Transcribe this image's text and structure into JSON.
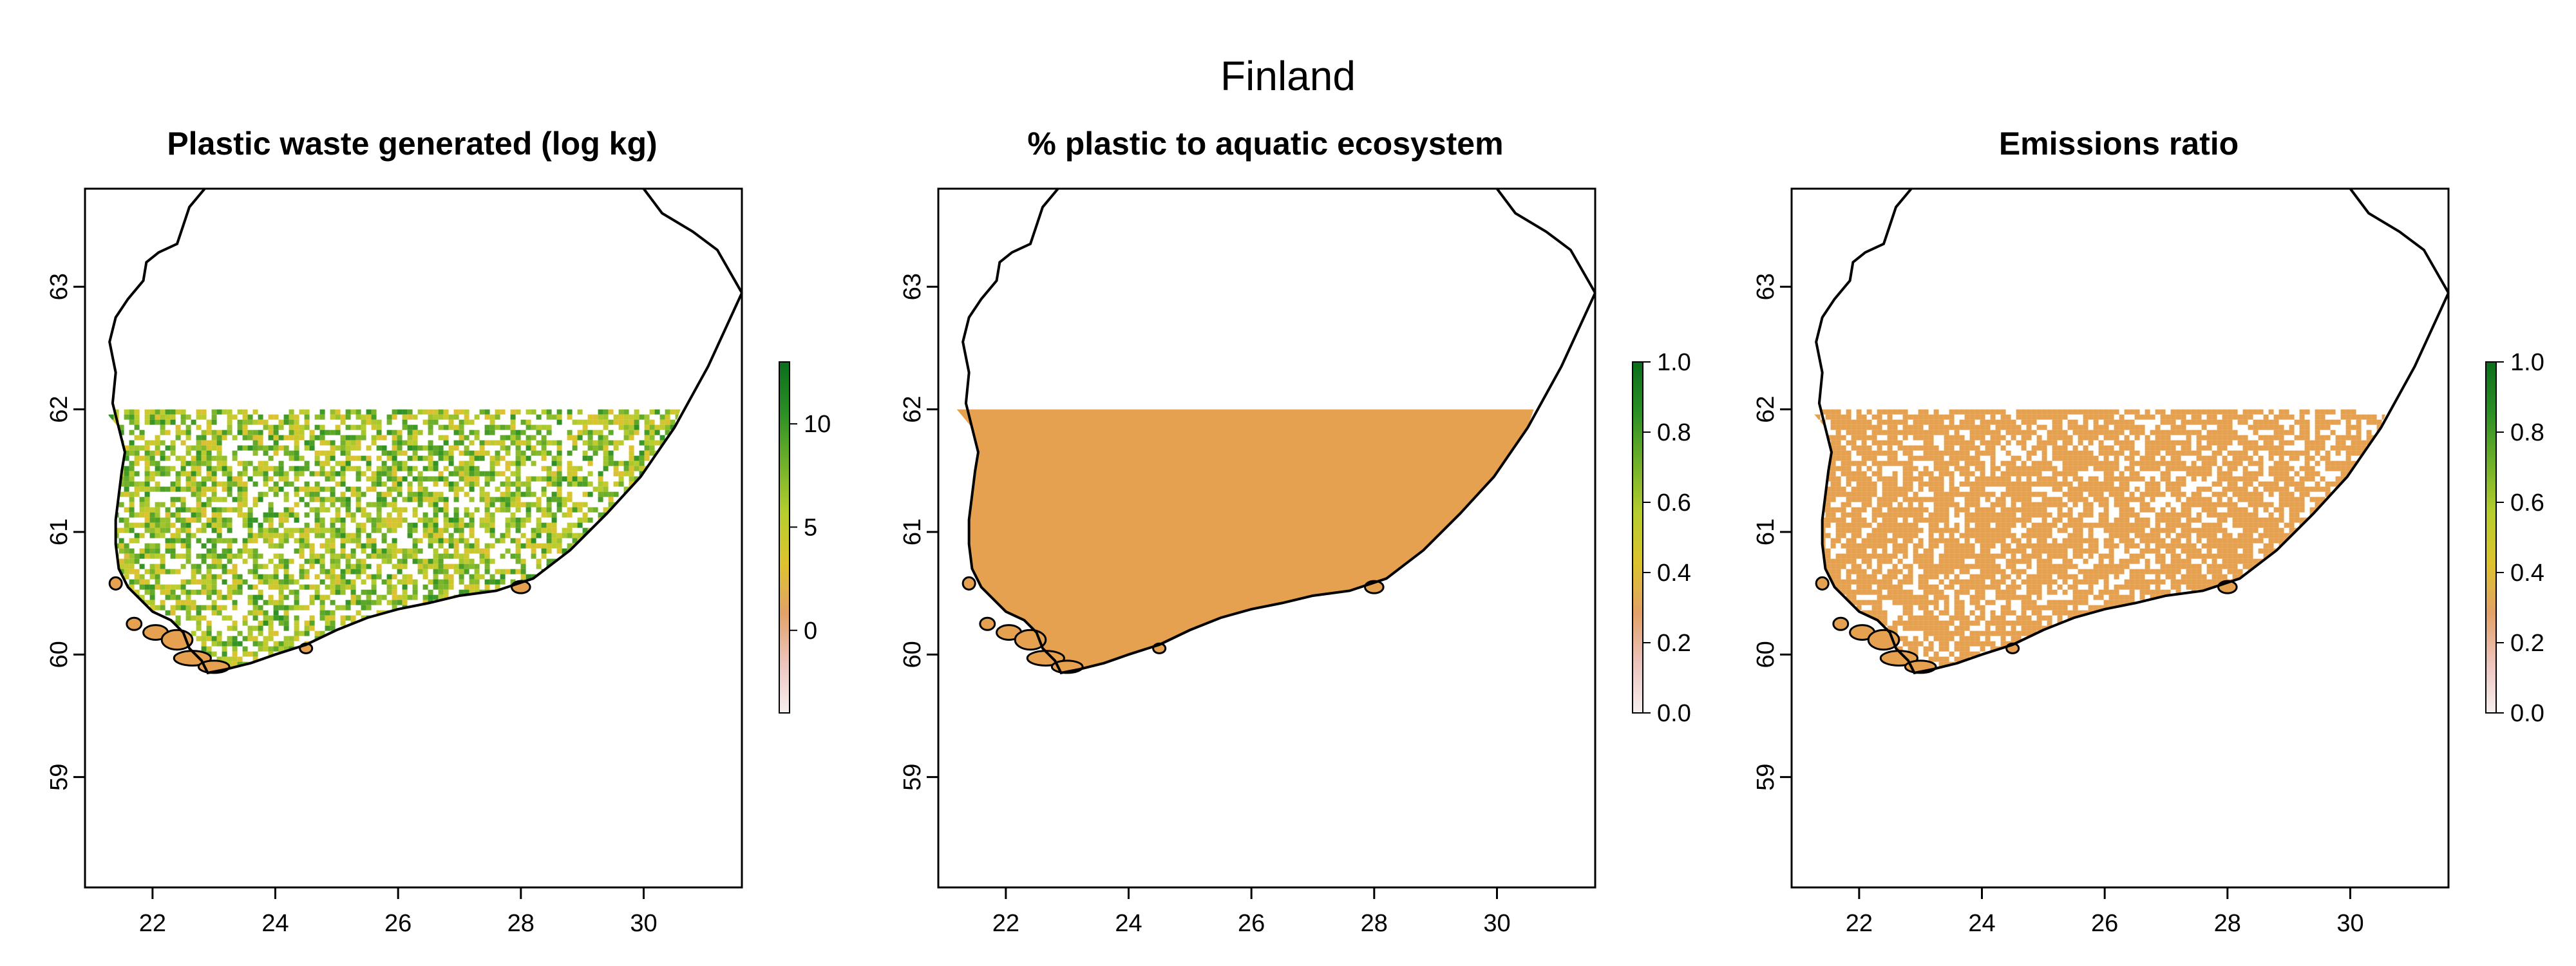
{
  "figure": {
    "title": "Finland"
  },
  "chart_data": [
    {
      "type": "heatmap",
      "title": "Plastic waste generated (log kg)",
      "xlabel": "",
      "ylabel": "",
      "xlim": [
        20.9,
        31.6
      ],
      "ylim": [
        58.1,
        63.8
      ],
      "x_ticks": [
        22,
        24,
        26,
        28,
        30
      ],
      "y_ticks": [
        59,
        60,
        61,
        62,
        63
      ],
      "raster_extent": {
        "x": [
          21.2,
          30.6
        ],
        "y": [
          59.8,
          62.0
        ]
      },
      "raster_pattern": "sparse-mixed",
      "colorbar": {
        "range": [
          -4,
          13
        ],
        "ticks": [
          0,
          5,
          10
        ],
        "colors": [
          "#f7f0f0",
          "#edc4bc",
          "#e3a167",
          "#dcc42d",
          "#b6cd2e",
          "#6fb02a",
          "#2a8f24",
          "#0b6e1c"
        ]
      },
      "grid": false,
      "legend": "right"
    },
    {
      "type": "heatmap",
      "title": "% plastic to aquatic ecosystem",
      "xlabel": "",
      "ylabel": "",
      "xlim": [
        20.9,
        31.6
      ],
      "ylim": [
        58.1,
        63.8
      ],
      "x_ticks": [
        22,
        24,
        26,
        28,
        30
      ],
      "y_ticks": [
        59,
        60,
        61,
        62,
        63
      ],
      "raster_extent": {
        "x": [
          21.2,
          30.6
        ],
        "y": [
          59.8,
          62.0
        ]
      },
      "raster_value": 0.3,
      "raster_pattern": "solid",
      "raster_color": "#e5a150",
      "colorbar": {
        "range": [
          0,
          1
        ],
        "ticks": [
          0.0,
          0.2,
          0.4,
          0.6,
          0.8,
          1.0
        ],
        "tick_labels": [
          "0.0",
          "0.2",
          "0.4",
          "0.6",
          "0.8",
          "1.0"
        ],
        "colors": [
          "#f7f0f0",
          "#edc4bc",
          "#e3a167",
          "#dcc42d",
          "#b6cd2e",
          "#6fb02a",
          "#2a8f24",
          "#0b6e1c"
        ]
      },
      "grid": false,
      "legend": "right"
    },
    {
      "type": "heatmap",
      "title": "Emissions ratio",
      "xlabel": "",
      "ylabel": "",
      "xlim": [
        20.9,
        31.6
      ],
      "ylim": [
        58.1,
        63.8
      ],
      "x_ticks": [
        22,
        24,
        26,
        28,
        30
      ],
      "y_ticks": [
        59,
        60,
        61,
        62,
        63
      ],
      "raster_extent": {
        "x": [
          21.2,
          30.6
        ],
        "y": [
          59.8,
          62.0
        ]
      },
      "raster_value": 0.3,
      "raster_pattern": "sparse-solid",
      "raster_color": "#e5a150",
      "colorbar": {
        "range": [
          0,
          1
        ],
        "ticks": [
          0.0,
          0.2,
          0.4,
          0.6,
          0.8,
          1.0
        ],
        "tick_labels": [
          "0.0",
          "0.2",
          "0.4",
          "0.6",
          "0.8",
          "1.0"
        ],
        "colors": [
          "#f7f0f0",
          "#edc4bc",
          "#e3a167",
          "#dcc42d",
          "#b6cd2e",
          "#6fb02a",
          "#2a8f24",
          "#0b6e1c"
        ]
      },
      "grid": false,
      "legend": "right"
    }
  ],
  "map": {
    "coastline": [
      [
        31.6,
        62.95
      ],
      [
        31.05,
        62.35
      ],
      [
        30.5,
        61.85
      ],
      [
        29.95,
        61.45
      ],
      [
        29.4,
        61.15
      ],
      [
        28.8,
        60.85
      ],
      [
        28.2,
        60.62
      ],
      [
        27.6,
        60.52
      ],
      [
        27.0,
        60.48
      ],
      [
        26.5,
        60.42
      ],
      [
        26.0,
        60.37
      ],
      [
        25.5,
        60.3
      ],
      [
        25.0,
        60.2
      ],
      [
        24.5,
        60.08
      ],
      [
        24.0,
        60.0
      ],
      [
        23.6,
        59.93
      ],
      [
        23.2,
        59.88
      ],
      [
        22.9,
        59.85
      ],
      [
        22.8,
        59.95
      ],
      [
        22.6,
        60.05
      ],
      [
        22.5,
        60.18
      ],
      [
        22.3,
        60.28
      ],
      [
        22.0,
        60.35
      ],
      [
        21.8,
        60.45
      ],
      [
        21.6,
        60.55
      ],
      [
        21.45,
        60.7
      ],
      [
        21.4,
        60.9
      ],
      [
        21.4,
        61.1
      ],
      [
        21.45,
        61.3
      ],
      [
        21.5,
        61.5
      ],
      [
        21.55,
        61.65
      ],
      [
        21.45,
        61.85
      ],
      [
        21.35,
        62.05
      ],
      [
        21.4,
        62.3
      ],
      [
        21.3,
        62.55
      ],
      [
        21.4,
        62.75
      ],
      [
        21.6,
        62.9
      ],
      [
        21.85,
        63.05
      ],
      [
        21.9,
        63.2
      ],
      [
        22.1,
        63.28
      ],
      [
        22.4,
        63.35
      ],
      [
        22.5,
        63.5
      ],
      [
        22.6,
        63.65
      ],
      [
        22.85,
        63.8
      ]
    ],
    "east_border": [
      [
        30.0,
        63.8
      ],
      [
        30.3,
        63.6
      ],
      [
        30.8,
        63.45
      ],
      [
        31.2,
        63.3
      ],
      [
        31.6,
        62.95
      ]
    ],
    "islands": [
      [
        21.7,
        60.25,
        0.12,
        0.05
      ],
      [
        22.05,
        60.18,
        0.2,
        0.06
      ],
      [
        22.4,
        60.12,
        0.25,
        0.08
      ],
      [
        22.65,
        59.97,
        0.3,
        0.06
      ],
      [
        23.0,
        59.9,
        0.25,
        0.05
      ],
      [
        21.4,
        60.58,
        0.1,
        0.05
      ],
      [
        28.0,
        60.55,
        0.15,
        0.05
      ],
      [
        24.5,
        60.05,
        0.1,
        0.04
      ]
    ],
    "raster_seed": 17
  }
}
